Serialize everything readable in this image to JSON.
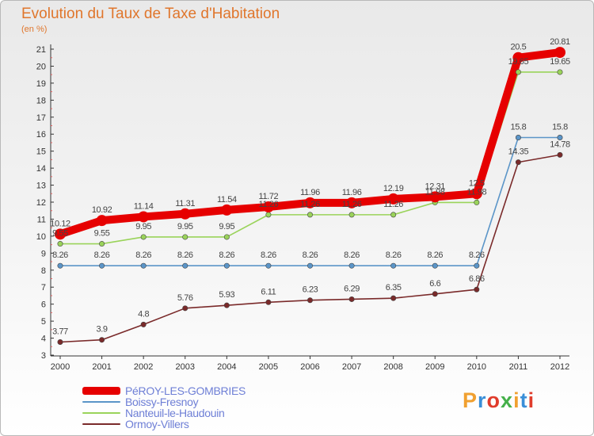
{
  "header": {
    "title": "Evolution du Taux de Taxe d'Habitation",
    "subtitle": "(en %)"
  },
  "logo": {
    "text": "Proxiti",
    "colors": [
      "#f0a030",
      "#3a8fd8",
      "#e03c2c",
      "#45b04a",
      "#f0a030",
      "#3a8fd8",
      "#e03c2c"
    ]
  },
  "chart_data": {
    "type": "line",
    "title": "Evolution du Taux de Taxe d'Habitation",
    "ylabel": "(en %)",
    "xlabel": "",
    "x": [
      "2000",
      "2001",
      "2002",
      "2003",
      "2004",
      "2005",
      "2006",
      "2007",
      "2008",
      "2009",
      "2010",
      "2011",
      "2012"
    ],
    "ylim": [
      3,
      21
    ],
    "yticks": [
      3,
      4,
      5,
      6,
      7,
      8,
      9,
      10,
      11,
      12,
      13,
      14,
      15,
      16,
      17,
      18,
      19,
      20,
      21
    ],
    "grid": false,
    "legend_position": "bottom-left",
    "series": [
      {
        "name": "PéROY-LES-GOMBRIES",
        "color": "#e60000",
        "values": [
          10.12,
          10.92,
          11.14,
          11.31,
          11.54,
          11.72,
          11.96,
          11.96,
          12.19,
          12.31,
          12.5,
          20.5,
          20.81
        ],
        "labels": [
          "10.12",
          "10.92",
          "11.14",
          "11.31",
          "11.54",
          "11.72",
          "11.96",
          "11.96",
          "12.19",
          "12.31",
          "12.5",
          "20.5",
          "20.81"
        ]
      },
      {
        "name": "Boissy-Fresnoy",
        "color": "#5b95c8",
        "values": [
          8.26,
          8.26,
          8.26,
          8.26,
          8.26,
          8.26,
          8.26,
          8.26,
          8.26,
          8.26,
          8.26,
          15.8,
          15.8
        ],
        "labels": [
          "8.26",
          "8.26",
          "8.26",
          "8.26",
          "8.26",
          "8.26",
          "8.26",
          "8.26",
          "8.26",
          "8.26",
          "8.26",
          "15.8",
          "15.8"
        ]
      },
      {
        "name": "Nanteuil-le-Haudouin",
        "color": "#9ad35a",
        "values": [
          9.55,
          9.55,
          9.95,
          9.95,
          9.95,
          11.26,
          11.26,
          11.26,
          11.26,
          11.98,
          11.98,
          19.65,
          19.65
        ],
        "labels": [
          "9.55",
          "9.55",
          "9.95",
          "9.95",
          "9.95",
          "11.26",
          "11.26",
          "11.26",
          "11.26",
          "11.98",
          "11.98",
          "19.65",
          "19.65"
        ]
      },
      {
        "name": "Ormoy-Villers",
        "color": "#7a2a2a",
        "values": [
          3.77,
          3.9,
          4.8,
          5.76,
          5.93,
          6.11,
          6.23,
          6.29,
          6.35,
          6.6,
          6.86,
          14.35,
          14.78
        ],
        "labels": [
          "3.77",
          "3.9",
          "4.8",
          "5.76",
          "5.93",
          "6.11",
          "6.23",
          "6.29",
          "6.35",
          "6.6",
          "6.86",
          "14.35",
          "14.78"
        ]
      }
    ]
  }
}
